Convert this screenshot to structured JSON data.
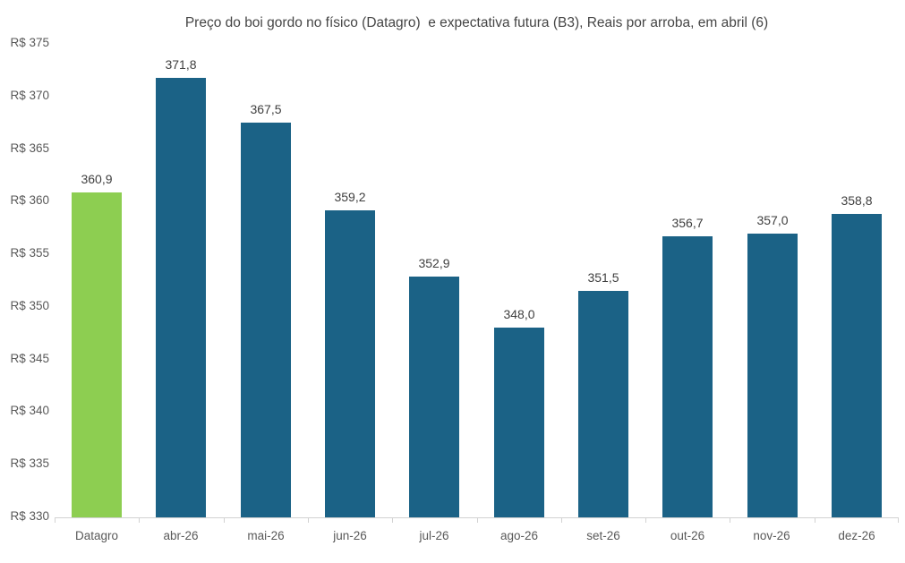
{
  "chart_data": {
    "type": "bar",
    "title": "Preço do boi gordo no físico (Datagro)  e expectativa futura (B3), Reais por arroba, em abril (6)",
    "categories": [
      "Datagro",
      "abr-26",
      "mai-26",
      "jun-26",
      "jul-26",
      "ago-26",
      "set-26",
      "out-26",
      "nov-26",
      "dez-26"
    ],
    "values": [
      360.9,
      371.8,
      367.5,
      359.2,
      352.9,
      348.0,
      351.5,
      356.7,
      357.0,
      358.8
    ],
    "data_labels": [
      "360,9",
      "371,8",
      "367,5",
      "359,2",
      "352,9",
      "348,0",
      "351,5",
      "356,7",
      "357,0",
      "358,8"
    ],
    "yticks": [
      330,
      335,
      340,
      345,
      350,
      355,
      360,
      365,
      370,
      375
    ],
    "ytick_labels": [
      "R$ 330",
      "R$ 335",
      "R$ 340",
      "R$ 345",
      "R$ 350",
      "R$ 355",
      "R$ 360",
      "R$ 365",
      "R$ 370",
      "R$ 375"
    ],
    "ylim": [
      330,
      375
    ],
    "xlabel": "",
    "ylabel": "",
    "grid": false,
    "legend": false,
    "highlight_index": 0,
    "colors": {
      "highlight_bar": "#8DCE51",
      "default_bar": "#1B6286",
      "axis": "#D2D2D2",
      "tick_label": "#595959",
      "data_label": "#3F3F3F",
      "title": "#454545",
      "background": "#FFFFFF"
    }
  }
}
